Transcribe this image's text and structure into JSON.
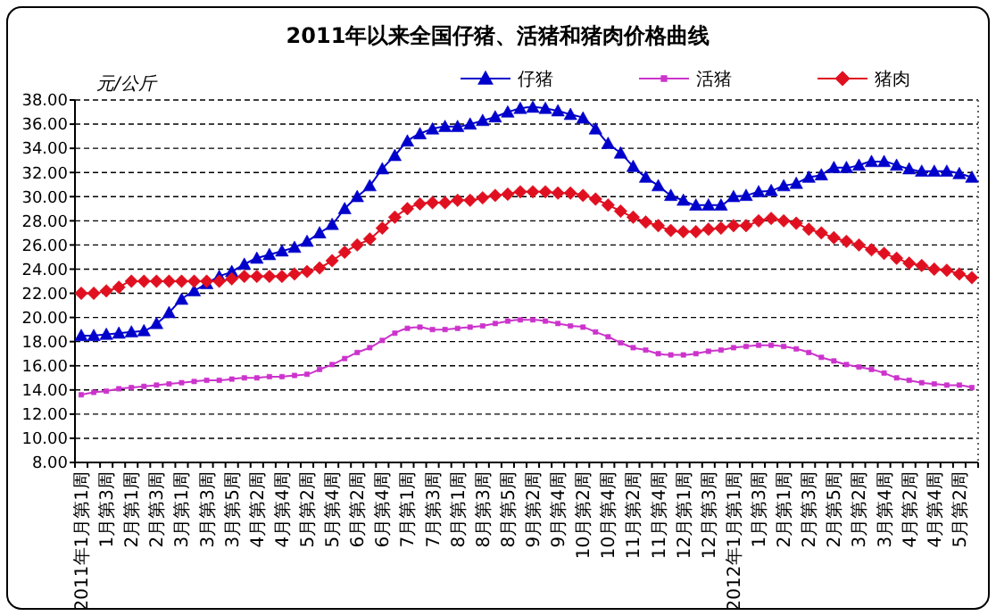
{
  "chart_data": {
    "type": "line",
    "title": "2011年以来全国仔猪、活猪和猪肉价格曲线",
    "ylabel": "元/公斤",
    "categories": [
      "2011年1月第1周",
      null,
      "1月第3周",
      null,
      "2月第1周",
      null,
      "2月第3周",
      null,
      "3月第1周",
      null,
      "3月第3周",
      null,
      "3月第5周",
      null,
      "4月第2周",
      null,
      "4月第4周",
      null,
      "5月第2周",
      null,
      "5月第4周",
      null,
      "6月第2周",
      null,
      "6月第4周",
      null,
      "7月第1周",
      null,
      "7月第3周",
      null,
      "8月第1周",
      null,
      "8月第3周",
      null,
      "8月第5周",
      null,
      "9月第2周",
      null,
      "9月第4周",
      null,
      "10月第2周",
      null,
      "10月第4周",
      null,
      "11月第2周",
      null,
      "11月第4周",
      null,
      "12月第1周",
      null,
      "12月第3周",
      null,
      "2012年1月第1周",
      null,
      "1月第3周",
      null,
      "2月第1周",
      null,
      "2月第3周",
      null,
      "2月第5周",
      null,
      "3月第2周",
      null,
      "3月第4周",
      null,
      "4月第2周",
      null,
      "4月第4周",
      null,
      "5月第2周",
      null
    ],
    "series": [
      {
        "name": "仔猪",
        "color": "#0000cc",
        "marker": "triangle",
        "values": [
          18.5,
          18.5,
          18.6,
          18.7,
          18.8,
          18.9,
          19.5,
          20.4,
          21.5,
          22.2,
          22.8,
          23.4,
          23.8,
          24.4,
          24.9,
          25.2,
          25.5,
          25.8,
          26.3,
          27.0,
          27.7,
          29.0,
          30.0,
          30.9,
          32.3,
          33.4,
          34.6,
          35.2,
          35.6,
          35.8,
          35.8,
          36.0,
          36.3,
          36.6,
          37.0,
          37.3,
          37.4,
          37.3,
          37.1,
          36.8,
          36.5,
          35.6,
          34.4,
          33.6,
          32.5,
          31.6,
          30.9,
          30.1,
          29.7,
          29.3,
          29.3,
          29.3,
          30.0,
          30.1,
          30.4,
          30.5,
          30.9,
          31.1,
          31.6,
          31.8,
          32.4,
          32.4,
          32.6,
          32.9,
          32.9,
          32.6,
          32.3,
          32.1,
          32.1,
          32.1,
          31.9,
          31.6
        ]
      },
      {
        "name": "活猪",
        "color": "#cc33cc",
        "marker": "square",
        "values": [
          13.6,
          13.8,
          13.9,
          14.1,
          14.2,
          14.3,
          14.4,
          14.5,
          14.6,
          14.7,
          14.8,
          14.8,
          14.9,
          15.0,
          15.0,
          15.1,
          15.1,
          15.2,
          15.3,
          15.7,
          16.1,
          16.6,
          17.1,
          17.5,
          18.1,
          18.7,
          19.1,
          19.2,
          19.0,
          19.0,
          19.1,
          19.2,
          19.3,
          19.5,
          19.7,
          19.8,
          19.8,
          19.7,
          19.5,
          19.3,
          19.2,
          18.8,
          18.4,
          17.9,
          17.5,
          17.3,
          17.0,
          16.9,
          16.9,
          17.0,
          17.2,
          17.3,
          17.5,
          17.6,
          17.7,
          17.7,
          17.6,
          17.4,
          17.1,
          16.7,
          16.4,
          16.1,
          15.9,
          15.7,
          15.4,
          15.0,
          14.8,
          14.6,
          14.5,
          14.4,
          14.4,
          14.2
        ]
      },
      {
        "name": "猪肉",
        "color": "#e01020",
        "marker": "diamond",
        "values": [
          22.0,
          22.0,
          22.2,
          22.5,
          23.0,
          23.0,
          23.0,
          23.0,
          23.0,
          23.0,
          23.0,
          23.0,
          23.2,
          23.4,
          23.4,
          23.4,
          23.4,
          23.6,
          23.8,
          24.1,
          24.7,
          25.4,
          26.0,
          26.5,
          27.4,
          28.3,
          29.0,
          29.4,
          29.5,
          29.5,
          29.7,
          29.7,
          29.9,
          30.1,
          30.2,
          30.4,
          30.4,
          30.4,
          30.3,
          30.3,
          30.1,
          29.8,
          29.3,
          28.8,
          28.3,
          27.9,
          27.6,
          27.2,
          27.1,
          27.1,
          27.3,
          27.4,
          27.6,
          27.6,
          28.0,
          28.2,
          28.0,
          27.8,
          27.3,
          27.0,
          26.6,
          26.3,
          26.0,
          25.6,
          25.3,
          24.9,
          24.5,
          24.3,
          24.0,
          23.9,
          23.6,
          23.3
        ]
      }
    ],
    "ylim": [
      8,
      38
    ],
    "yticks": [
      {
        "value": 8,
        "label": "8.00"
      },
      {
        "value": 10,
        "label": "10.00"
      },
      {
        "value": 12,
        "label": "12.00"
      },
      {
        "value": 14,
        "label": "14.00"
      },
      {
        "value": 16,
        "label": "16.00"
      },
      {
        "value": 18,
        "label": "18.00"
      },
      {
        "value": 20,
        "label": "20.00"
      },
      {
        "value": 22,
        "label": "22.00"
      },
      {
        "value": 24,
        "label": "24.00"
      },
      {
        "value": 26,
        "label": "26.00"
      },
      {
        "value": 28,
        "label": "28.00"
      },
      {
        "value": 30,
        "label": "30.00"
      },
      {
        "value": 32,
        "label": "32.00"
      },
      {
        "value": 34,
        "label": "34.00"
      },
      {
        "value": 36,
        "label": "36.00"
      },
      {
        "value": 38,
        "label": "38.00"
      }
    ],
    "grid": "y",
    "legend": "top right",
    "line_style": "solid"
  }
}
